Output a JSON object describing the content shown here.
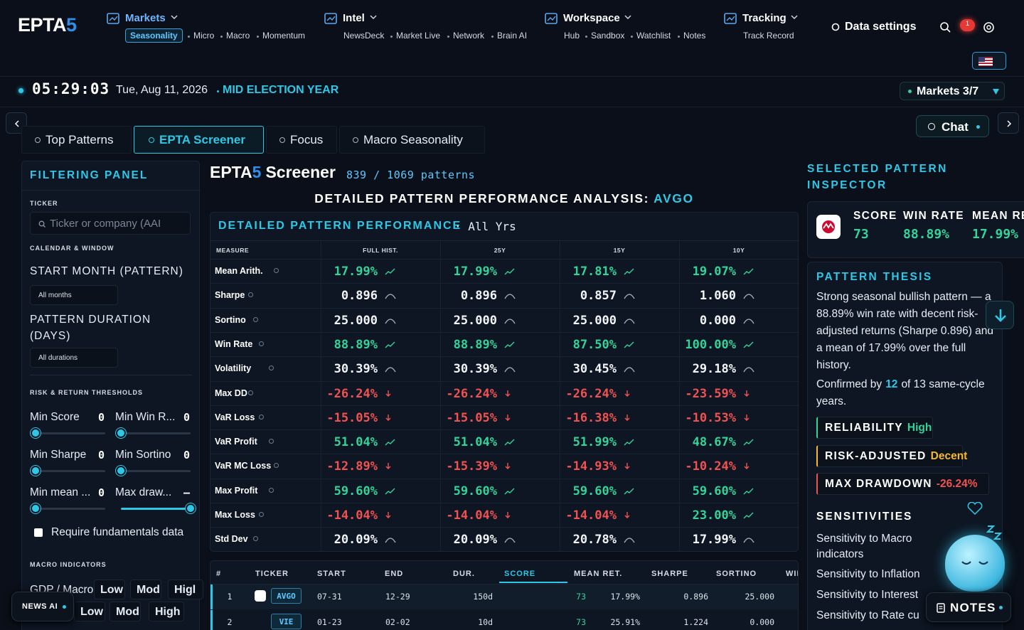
{
  "header": {
    "logo": {
      "main": "EPTA",
      "accent": "5"
    },
    "nav": [
      {
        "label": "Markets",
        "items": [
          "Seasonality",
          "Micro",
          "Macro",
          "Momentum"
        ]
      },
      {
        "label": "Intel",
        "items": [
          "NewsDeck",
          "Market Live",
          "Network",
          "Brain AI"
        ]
      },
      {
        "label": "Workspace",
        "items": [
          "Hub",
          "Sandbox",
          "Watchlist",
          "Notes"
        ]
      },
      {
        "label": "Tracking",
        "items": [
          "Track Record"
        ]
      }
    ],
    "data_settings": "Data settings",
    "notification_count": "1"
  },
  "status": {
    "time": "05:29:03",
    "date": "Tue, Aug 11, 2026",
    "cycle": "MID ELECTION YEAR",
    "markets": "Markets 3/7"
  },
  "tabs": {
    "items": [
      "Top Patterns",
      "EPTA Screener",
      "Focus",
      "Macro Seasonality"
    ],
    "active": 1,
    "chat": "Chat"
  },
  "filter_panel": {
    "title": "FILTERING PANEL",
    "ticker_label": "TICKER",
    "ticker_placeholder": "Ticker or company (AAI",
    "calendar_label": "CALENDAR & WINDOW",
    "start_month_label": "START MONTH (PATTERN)",
    "start_month_value": "All months",
    "duration_label": "PATTERN DURATION (DAYS)",
    "duration_value": "All durations",
    "thresholds_label": "RISK & RETURN THRESHOLDS",
    "sliders": [
      {
        "label": "Min Score",
        "value": "0"
      },
      {
        "label": "Min Win R...",
        "value": "0"
      },
      {
        "label": "Min Sharpe",
        "value": "0"
      },
      {
        "label": "Min Sortino",
        "value": "0"
      },
      {
        "label": "Min mean ...",
        "value": "0"
      },
      {
        "label": "Max draw...",
        "value": "–"
      }
    ],
    "fundamentals": "Require fundamentals data",
    "macro_label": "MACRO INDICATORS",
    "macro_rows": [
      {
        "label": "GDP / Macro",
        "options": [
          "Low",
          "Mod",
          "Higl"
        ]
      },
      {
        "label": "",
        "options": [
          "Low",
          "Mod",
          "High"
        ]
      }
    ],
    "news_ai": "NEWS AI"
  },
  "screener": {
    "title": {
      "main": "EPTA",
      "accent": "5",
      "rest": "Screener"
    },
    "count": "839 / 1069 patterns",
    "subtitle": "DETAILED PATTERN PERFORMANCE ANALYSIS:",
    "ticker": "AVGO",
    "panel_title": "DETAILED PATTERN PERFORMANCE",
    "period": "· All Yrs",
    "columns": [
      "MEASURE",
      "FULL HIST.",
      "25Y",
      "15Y",
      "10Y"
    ],
    "rows": [
      {
        "measure": "Mean Arith.",
        "cells": [
          "17.99%",
          "17.99%",
          "17.81%",
          "19.07%"
        ]
      },
      {
        "measure": "Sharpe",
        "cells": [
          "0.896",
          "0.896",
          "0.857",
          "1.060"
        ],
        "neutral": true
      },
      {
        "measure": "Sortino",
        "cells": [
          "25.000",
          "25.000",
          "25.000",
          "0.000"
        ],
        "neutral": true
      },
      {
        "measure": "Win Rate",
        "cells": [
          "88.89%",
          "88.89%",
          "87.50%",
          "100.00%"
        ]
      },
      {
        "measure": "Volatility",
        "cells": [
          "30.39%",
          "30.39%",
          "30.45%",
          "29.18%"
        ],
        "neutral": true
      },
      {
        "measure": "Max DD",
        "cells": [
          "-26.24%",
          "-26.24%",
          "-26.24%",
          "-23.59%"
        ]
      },
      {
        "measure": "VaR Loss",
        "cells": [
          "-15.05%",
          "-15.05%",
          "-16.38%",
          "-10.53%"
        ]
      },
      {
        "measure": "VaR Profit",
        "cells": [
          "51.04%",
          "51.04%",
          "51.99%",
          "48.67%"
        ]
      },
      {
        "measure": "VaR MC Loss",
        "cells": [
          "-12.89%",
          "-15.39%",
          "-14.93%",
          "-10.24%"
        ]
      },
      {
        "measure": "Max Profit",
        "cells": [
          "59.60%",
          "59.60%",
          "59.60%",
          "59.60%"
        ]
      },
      {
        "measure": "Max Loss",
        "cells": [
          "-14.04%",
          "-14.04%",
          "-14.04%",
          "23.00%"
        ]
      },
      {
        "measure": "Std Dev",
        "cells": [
          "20.09%",
          "20.09%",
          "20.78%",
          "17.99%"
        ],
        "neutral": true
      }
    ]
  },
  "results": {
    "columns": [
      "#",
      "TICKER",
      "START",
      "END",
      "DUR.",
      "SCORE",
      "MEAN RET.",
      "SHARPE",
      "SORTINO",
      "WII"
    ],
    "sorted": 5,
    "rows": [
      [
        "1",
        "AVGO",
        "07-31",
        "12-29",
        "150d",
        "73",
        "17.99%",
        "0.896",
        "25.000"
      ],
      [
        "2",
        "VIE",
        "01-23",
        "02-02",
        "10d",
        "73",
        "25.91%",
        "1.224",
        "0.000"
      ]
    ]
  },
  "inspector": {
    "title": "SELECTED PATTERN INSPECTOR",
    "stats": [
      {
        "label": "SCORE",
        "value": "73"
      },
      {
        "label": "WIN RATE",
        "value": "88.89%"
      },
      {
        "label": "MEAN RE",
        "value": "17.99%"
      }
    ],
    "thesis_title": "PATTERN THESIS",
    "thesis": "Strong seasonal bullish pattern — a 88.89% win rate with decent risk-adjusted returns (Sharpe 0.896) and a mean of 17.99% over the full history.",
    "confirm": {
      "pre": "Confirmed by",
      "count": "12",
      "post": "of 13 same-cycle years."
    },
    "badges": [
      {
        "label": "RELIABILITY",
        "value": "High",
        "tone": "#34d399"
      },
      {
        "label": "RISK-ADJUSTED",
        "value": "Decent",
        "tone": "#f5b82e"
      },
      {
        "label": "MAX DRAWDOWN",
        "value": "-26.24%",
        "tone": "#f05252"
      }
    ],
    "sensitivities_title": "SENSITIVITIES",
    "sensitivities": [
      "Sensitivity to Macro indicators",
      "Sensitivity to Inflation",
      "Sensitivity to Interest",
      "Sensitivity to Rate cu"
    ],
    "notes": "NOTES"
  }
}
